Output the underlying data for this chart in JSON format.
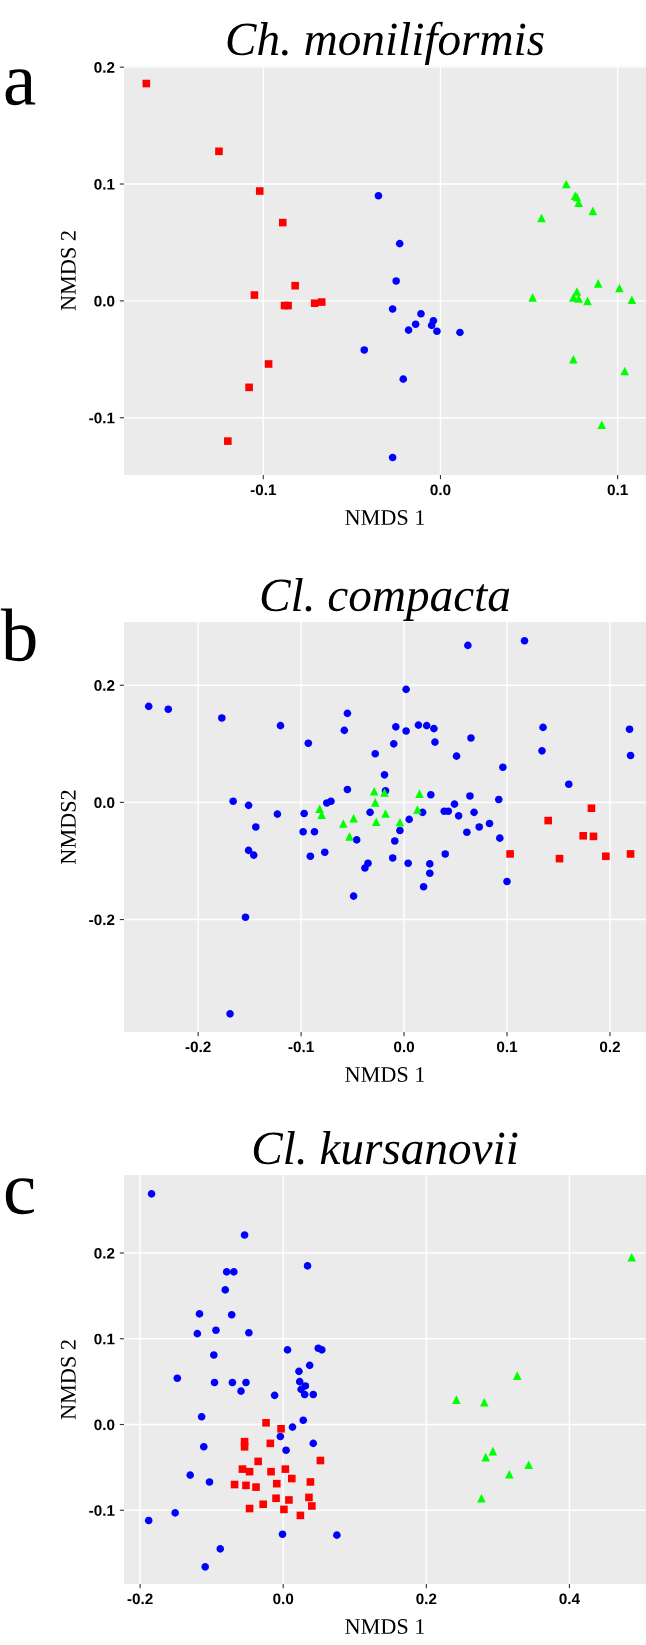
{
  "chart_data": [
    {
      "type": "scatter",
      "title": "Ch. moniliformis",
      "xlabel": "NMDS 1",
      "ylabel": "NMDS 2",
      "annotations": [
        "a"
      ],
      "grid": true,
      "legend": false,
      "xlim": [
        -0.1786,
        0.116
      ],
      "ylim": [
        -0.149,
        0.201
      ],
      "xticks": [
        {
          "value": -0.1,
          "label": "-0.1"
        },
        {
          "value": 0.0,
          "label": "0.0"
        },
        {
          "value": 0.1,
          "label": "0.1"
        }
      ],
      "yticks": [
        {
          "value": -0.1,
          "label": "-0.1"
        },
        {
          "value": 0.0,
          "label": "0.0"
        },
        {
          "value": 0.1,
          "label": "0.1"
        },
        {
          "value": 0.2,
          "label": "0.2"
        }
      ],
      "series": [
        {
          "color": "#ff0000",
          "marker": "square",
          "x": [
            -0.166,
            -0.125,
            -0.102,
            -0.089,
            -0.082,
            -0.105,
            -0.088,
            -0.086,
            -0.071,
            -0.067,
            -0.097,
            -0.108,
            -0.12
          ],
          "values": [
            0.186,
            0.128,
            0.094,
            0.067,
            0.013,
            0.005,
            -0.004,
            -0.004,
            -0.002,
            -0.001,
            -0.054,
            -0.074,
            -0.12
          ]
        },
        {
          "color": "#0000ff",
          "marker": "circle",
          "x": [
            -0.035,
            -0.023,
            -0.025,
            -0.027,
            -0.011,
            -0.014,
            -0.018,
            -0.005,
            -0.004,
            -0.002,
            0.011,
            -0.043,
            -0.021,
            -0.027
          ],
          "values": [
            0.09,
            0.049,
            0.017,
            -0.007,
            -0.011,
            -0.02,
            -0.025,
            -0.021,
            -0.017,
            -0.026,
            -0.027,
            -0.042,
            -0.067,
            -0.134
          ]
        },
        {
          "color": "#00ff00",
          "marker": "triangle",
          "x": [
            0.071,
            0.076,
            0.077,
            0.078,
            0.086,
            0.057,
            0.052,
            0.077,
            0.075,
            0.078,
            0.083,
            0.089,
            0.101,
            0.108,
            0.075,
            0.104,
            0.091
          ],
          "values": [
            0.1,
            0.09,
            0.089,
            0.084,
            0.077,
            0.071,
            0.003,
            0.008,
            0.003,
            0.002,
            0.0,
            0.015,
            0.011,
            0.001,
            -0.05,
            -0.06,
            -0.106
          ]
        }
      ]
    },
    {
      "type": "scatter",
      "title": "Cl. compacta",
      "xlabel": "NMDS 1",
      "ylabel": "NMDS2",
      "annotations": [
        "b"
      ],
      "grid": true,
      "legend": false,
      "xlim": [
        -0.272,
        0.235
      ],
      "ylim": [
        -0.392,
        0.308
      ],
      "xticks": [
        {
          "value": -0.2,
          "label": "-0.2"
        },
        {
          "value": -0.1,
          "label": "-0.1"
        },
        {
          "value": 0.0,
          "label": "0.0"
        },
        {
          "value": 0.1,
          "label": "0.1"
        },
        {
          "value": 0.2,
          "label": "0.2"
        }
      ],
      "yticks": [
        {
          "value": -0.2,
          "label": "-0.2"
        },
        {
          "value": 0.0,
          "label": "0.0"
        },
        {
          "value": 0.2,
          "label": "0.2"
        }
      ],
      "series": [
        {
          "color": "#0000ff",
          "marker": "circle",
          "x": [
            -0.248,
            -0.229,
            -0.177,
            -0.12,
            -0.093,
            -0.055,
            -0.058,
            0.002,
            0.062,
            0.117,
            -0.008,
            0.002,
            0.014,
            0.022,
            0.029,
            0.03,
            -0.01,
            -0.028,
            0.065,
            0.051,
            0.096,
            0.135,
            0.134,
            0.219,
            0.22,
            0.16,
            -0.019,
            -0.018,
            -0.055,
            0.026,
            0.064,
            0.092,
            -0.166,
            -0.151,
            -0.075,
            -0.071,
            -0.123,
            -0.097,
            -0.033,
            0.018,
            0.039,
            0.043,
            0.049,
            0.053,
            0.068,
            0.005,
            0.083,
            0.073,
            -0.144,
            -0.098,
            -0.087,
            -0.004,
            0.061,
            0.093,
            -0.046,
            -0.009,
            -0.151,
            -0.146,
            -0.091,
            -0.077,
            0.04,
            -0.011,
            0.004,
            0.025,
            -0.035,
            -0.038,
            0.025,
            0.019,
            0.1,
            -0.049,
            -0.154,
            -0.169
          ],
          "values": [
            0.164,
            0.159,
            0.144,
            0.131,
            0.101,
            0.152,
            0.123,
            0.193,
            0.268,
            0.276,
            0.129,
            0.122,
            0.132,
            0.131,
            0.126,
            0.103,
            0.1,
            0.083,
            0.11,
            0.079,
            0.06,
            0.128,
            0.088,
            0.125,
            0.08,
            0.031,
            0.047,
            0.02,
            0.022,
            0.013,
            0.011,
            0.005,
            0.002,
            -0.005,
            -0.001,
            0.002,
            -0.02,
            -0.019,
            -0.017,
            -0.017,
            -0.015,
            -0.015,
            -0.003,
            -0.023,
            -0.017,
            -0.029,
            -0.036,
            -0.042,
            -0.042,
            -0.05,
            -0.05,
            -0.048,
            -0.051,
            -0.061,
            -0.064,
            -0.066,
            -0.082,
            -0.09,
            -0.092,
            -0.085,
            -0.088,
            -0.095,
            -0.104,
            -0.105,
            -0.104,
            -0.112,
            -0.121,
            -0.144,
            -0.135,
            -0.16,
            -0.196,
            -0.361
          ]
        },
        {
          "color": "#00ff00",
          "marker": "triangle",
          "x": [
            -0.082,
            -0.08,
            -0.059,
            -0.049,
            -0.053,
            -0.029,
            -0.019,
            -0.028,
            -0.027,
            -0.018,
            -0.004,
            0.015,
            0.013
          ],
          "values": [
            -0.011,
            -0.021,
            -0.036,
            -0.027,
            -0.058,
            0.019,
            0.017,
            0.0,
            -0.033,
            -0.019,
            -0.034,
            0.015,
            -0.012
          ]
        },
        {
          "color": "#ff0000",
          "marker": "square",
          "x": [
            0.103,
            0.14,
            0.151,
            0.174,
            0.182,
            0.184,
            0.196,
            0.22
          ],
          "values": [
            -0.088,
            -0.031,
            -0.096,
            -0.057,
            -0.01,
            -0.058,
            -0.092,
            -0.088
          ]
        }
      ]
    },
    {
      "type": "scatter",
      "title": "Cl. kursanovii",
      "xlabel": "NMDS 1",
      "ylabel": "NMDS 2",
      "annotations": [
        "c"
      ],
      "grid": true,
      "legend": false,
      "xlim": [
        -0.2225,
        0.507
      ],
      "ylim": [
        -0.186,
        0.291
      ],
      "xticks": [
        {
          "value": -0.2,
          "label": "-0.2"
        },
        {
          "value": 0.0,
          "label": "0.0"
        },
        {
          "value": 0.2,
          "label": "0.2"
        },
        {
          "value": 0.4,
          "label": "0.4"
        }
      ],
      "yticks": [
        {
          "value": -0.1,
          "label": "-0.1"
        },
        {
          "value": 0.0,
          "label": "0.0"
        },
        {
          "value": 0.1,
          "label": "0.1"
        },
        {
          "value": 0.2,
          "label": "0.2"
        }
      ],
      "series": [
        {
          "color": "#0000ff",
          "marker": "circle",
          "x": [
            -0.184,
            -0.054,
            0.034,
            -0.079,
            -0.069,
            -0.081,
            -0.117,
            -0.072,
            -0.12,
            -0.096,
            -0.094,
            -0.048,
            -0.097,
            0.006,
            0.049,
            0.054,
            0.037,
            0.022,
            -0.148,
            -0.096,
            -0.071,
            -0.052,
            0.023,
            0.031,
            0.025,
            -0.059,
            -0.012,
            0.03,
            0.042,
            -0.114,
            0.028,
            0.013,
            -0.004,
            0.042,
            -0.111,
            0.004,
            -0.13,
            -0.103,
            -0.188,
            -0.151,
            -0.001,
            0.075,
            -0.088,
            -0.109
          ],
          "values": [
            0.269,
            0.221,
            0.185,
            0.178,
            0.178,
            0.157,
            0.129,
            0.128,
            0.106,
            null,
            0.11,
            0.107,
            0.081,
            0.087,
            0.089,
            0.087,
            0.069,
            0.062,
            0.054,
            0.049,
            0.049,
            0.049,
            0.05,
            0.045,
            0.041,
            0.039,
            0.034,
            0.035,
            0.035,
            0.009,
            0.005,
            -0.003,
            -0.014,
            -0.022,
            -0.026,
            -0.03,
            -0.059,
            -0.067,
            -0.112,
            -0.103,
            -0.128,
            -0.129,
            -0.145,
            -0.166
          ]
        },
        {
          "color": "#ff0000",
          "marker": "square",
          "x": [
            -0.024,
            -0.003,
            -0.054,
            -0.054,
            -0.018,
            -0.035,
            0.052,
            -0.057,
            -0.047,
            -0.017,
            0.003,
            0.012,
            0.038,
            -0.068,
            -0.052,
            -0.038,
            -0.009,
            -0.01,
            0.008,
            0.036,
            0.04,
            -0.028,
            -0.047,
            0.001,
            0.024
          ],
          "values": [
            0.002,
            -0.005,
            -0.02,
            -0.026,
            -0.022,
            -0.043,
            -0.042,
            -0.052,
            -0.055,
            -0.055,
            -0.052,
            -0.063,
            -0.067,
            -0.07,
            -0.071,
            -0.073,
            -0.069,
            -0.086,
            -0.088,
            -0.085,
            -0.095,
            -0.093,
            -0.098,
            -0.099,
            -0.106
          ]
        },
        {
          "color": "#00ff00",
          "marker": "triangle",
          "x": [
            0.242,
            0.281,
            0.327,
            0.293,
            0.283,
            0.343,
            0.316,
            0.277,
            0.487
          ],
          "values": [
            0.029,
            0.026,
            0.057,
            -0.031,
            -0.038,
            -0.047,
            -0.058,
            -0.086,
            0.195
          ]
        }
      ]
    }
  ]
}
